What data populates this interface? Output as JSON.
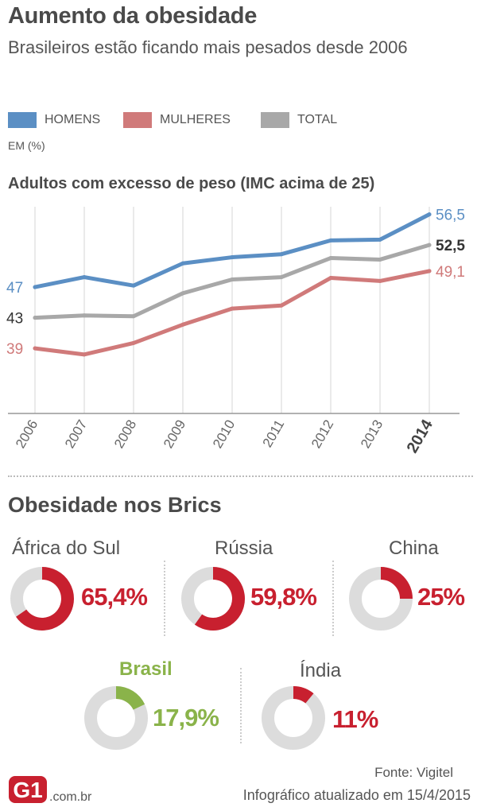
{
  "header": {
    "title": "Aumento da obesidade",
    "subtitle": "Brasileiros estão ficando mais pesados desde 2006"
  },
  "legend": {
    "items": [
      {
        "label": "HOMENS",
        "color": "#5b8fc4"
      },
      {
        "label": "MULHERES",
        "color": "#d07a7a"
      },
      {
        "label": "TOTAL",
        "color": "#a8a8a8"
      }
    ],
    "unit": "EM (%)"
  },
  "chart_data": {
    "type": "line",
    "title": "Adultos com excesso de peso (IMC acima de 25)",
    "categories": [
      "2006",
      "2007",
      "2008",
      "2009",
      "2010",
      "2011",
      "2012",
      "2013",
      "2014"
    ],
    "series": [
      {
        "name": "HOMENS",
        "color": "#5b8fc4",
        "values": [
          47,
          48.3,
          47.2,
          50.1,
          50.9,
          51.3,
          53.1,
          53.2,
          56.5
        ],
        "start_label": "47",
        "end_label": "56,5"
      },
      {
        "name": "TOTAL",
        "color": "#a8a8a8",
        "values": [
          43,
          43.3,
          43.2,
          46.2,
          48,
          48.3,
          50.8,
          50.6,
          52.5
        ],
        "start_label": "43",
        "end_label": "52,5"
      },
      {
        "name": "MULHERES",
        "color": "#d07a7a",
        "values": [
          39,
          38.2,
          39.7,
          42.1,
          44.2,
          44.6,
          48.2,
          47.8,
          49.1
        ],
        "start_label": "39",
        "end_label": "49,1"
      }
    ],
    "ylim": [
      30.5,
      57.5
    ],
    "grid": true,
    "bold_last_category": true
  },
  "brics": {
    "title": "Obesidade nos Brics",
    "ring_bg": "#dcdcdc",
    "countries": [
      {
        "name": "África do Sul",
        "value": 65.4,
        "label": "65,4%",
        "color": "#c8202f"
      },
      {
        "name": "Rússia",
        "value": 59.8,
        "label": "59,8%",
        "color": "#c8202f"
      },
      {
        "name": "China",
        "value": 25,
        "label": "25%",
        "color": "#c8202f"
      },
      {
        "name": "Brasil",
        "value": 17.9,
        "label": "17,9%",
        "color": "#8ab34a"
      },
      {
        "name": "Índia",
        "value": 11,
        "label": "11%",
        "color": "#c8202f"
      }
    ]
  },
  "footer": {
    "source": "Fonte: Vigitel",
    "updated": "Infográfico atualizado em 15/4/2015",
    "logo_text": "G1",
    "logo_domain": ".com.br"
  }
}
